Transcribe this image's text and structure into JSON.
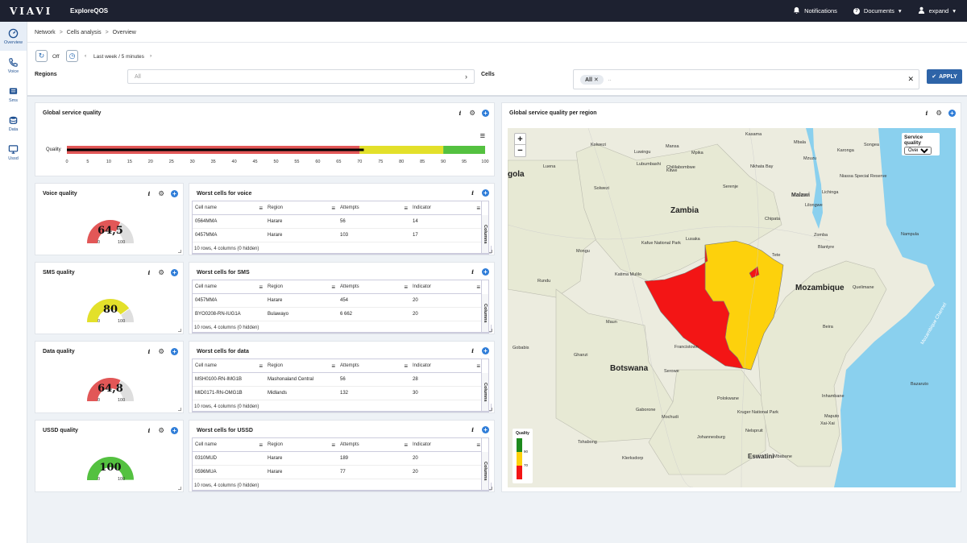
{
  "topbar": {
    "brand": "VIAVI",
    "app_name": "ExploreQOS",
    "notifications_label": "Notifications",
    "documents_label": "Documents",
    "user_label": "expand"
  },
  "sidenav": {
    "items": [
      {
        "label": "Overview",
        "icon": "gauge-icon"
      },
      {
        "label": "Voice",
        "icon": "phone-icon"
      },
      {
        "label": "Sms",
        "icon": "message-icon"
      },
      {
        "label": "Data",
        "icon": "database-icon"
      },
      {
        "label": "Ussd",
        "icon": "screen-icon"
      }
    ]
  },
  "breadcrumb": {
    "items": [
      "Network",
      "Cells analysis",
      "Overview"
    ],
    "separator": ">"
  },
  "filters": {
    "auto_refresh": "Off",
    "period": "Last week / 5 minutes",
    "regions_label": "Regions",
    "regions_value": "All",
    "cells_label": "Cells",
    "cells_chip": "All",
    "cells_placeholder": "..",
    "apply_label": "APPLY"
  },
  "global_quality": {
    "title": "Global service quality",
    "row_label": "Quality",
    "value": 71,
    "ticks": [
      "0",
      "5",
      "10",
      "15",
      "20",
      "25",
      "30",
      "35",
      "40",
      "45",
      "50",
      "55",
      "60",
      "65",
      "70",
      "75",
      "80",
      "85",
      "90",
      "95",
      "100"
    ],
    "bands": [
      {
        "from": 0,
        "to": 70,
        "color": "#e25757"
      },
      {
        "from": 70,
        "to": 90,
        "color": "#e3e02a"
      },
      {
        "from": 90,
        "to": 100,
        "color": "#54c140"
      }
    ]
  },
  "gauges": [
    {
      "title": "Voice quality",
      "value_text": "64,5",
      "value": 64.5,
      "min": "0",
      "max": "100",
      "color": "#e25757"
    },
    {
      "title": "SMS quality",
      "value_text": "80",
      "value": 80,
      "min": "0",
      "max": "100",
      "color": "#e3e02a"
    },
    {
      "title": "Data quality",
      "value_text": "64,8",
      "value": 64.8,
      "min": "0",
      "max": "100",
      "color": "#e25757"
    },
    {
      "title": "USSD quality",
      "value_text": "100",
      "value": 100,
      "min": "0",
      "max": "100",
      "color": "#54c140"
    }
  ],
  "tables": [
    {
      "title": "Worst cells for voice",
      "columns": [
        "Cell name",
        "Region",
        "Attempts",
        "Indicator"
      ],
      "rows": [
        [
          "0564MMA",
          "Harare",
          "56",
          "14"
        ],
        [
          "0457MMA",
          "Harare",
          "103",
          "17"
        ]
      ],
      "footer": "10 rows, 4 columns (0 hidden)",
      "columns_tab": "Columns"
    },
    {
      "title": "Worst cells for SMS",
      "columns": [
        "Cell name",
        "Region",
        "Attempts",
        "Indicator"
      ],
      "rows": [
        [
          "0457MMA",
          "Harare",
          "454",
          "20"
        ],
        [
          "BYO0208-RN-IUG1A",
          "Bulawayo",
          "6 662",
          "20"
        ]
      ],
      "footer": "10 rows, 4 columns (0 hidden)",
      "columns_tab": "Columns"
    },
    {
      "title": "Worst cells for data",
      "columns": [
        "Cell name",
        "Region",
        "Attempts",
        "Indicator"
      ],
      "rows": [
        [
          "MSH0100-RN-IMG1B",
          "Mashonaland Central",
          "56",
          "28"
        ],
        [
          "MID0171-RN-OMG1B",
          "Midlands",
          "132",
          "30"
        ]
      ],
      "footer": "10 rows, 4 columns (0 hidden)",
      "columns_tab": "Columns"
    },
    {
      "title": "Worst cells for USSD",
      "columns": [
        "Cell name",
        "Region",
        "Attempts",
        "Indicator"
      ],
      "rows": [
        [
          "0310MUD",
          "Harare",
          "189",
          "20"
        ],
        [
          "0596MUA",
          "Harare",
          "77",
          "20"
        ]
      ],
      "footer": "10 rows, 4 columns (0 hidden)",
      "columns_tab": "Columns"
    }
  ],
  "map": {
    "title": "Global service quality per region",
    "zoom_in": "+",
    "zoom_out": "−",
    "service_quality_label": "Service quality",
    "service_quality_value": "Overall",
    "legend_title": "Quality",
    "legend_values": [
      "90",
      "70"
    ],
    "water_label": "Mozambique Channel",
    "countries": [
      "Zambia",
      "Malawi",
      "Mozambique",
      "Botswana",
      "Eswatini",
      "gola"
    ],
    "places": [
      "Kasama",
      "Mbala",
      "Kolwezi",
      "Mansa",
      "Luwingu",
      "Mpika",
      "Karonga",
      "Songea",
      "Lubumbashi",
      "Mzuzu",
      "Chililabombwe",
      "Nkhata Bay",
      "Kitwe",
      "Lichinga",
      "Luena",
      "Serenje",
      "Niassa Special Reserve",
      "Lilongwe",
      "Zomba",
      "Solwezi",
      "Chipata",
      "Kafue National Park",
      "Lusaka",
      "Nampula",
      "Mongu",
      "Tete",
      "Blantyre",
      "Quelimane",
      "Katima Mulilo",
      "Rundu",
      "Beira",
      "Maun",
      "Francistown",
      "Ghanzi",
      "Serowe",
      "Gaborone",
      "Polokwane",
      "Maputo",
      "Xai-Xai",
      "Inhambane",
      "Kruger National Park",
      "Nelspruit",
      "Johannesburg",
      "Tshabong",
      "Klerksdorp",
      "Mbabane",
      "Bazaruto",
      "Gobabis",
      "Mochudi"
    ]
  },
  "colors": {
    "accent": "#2e64a8",
    "bad": "#f31515",
    "medium": "#fdd10c",
    "good": "#1d8a1d"
  }
}
